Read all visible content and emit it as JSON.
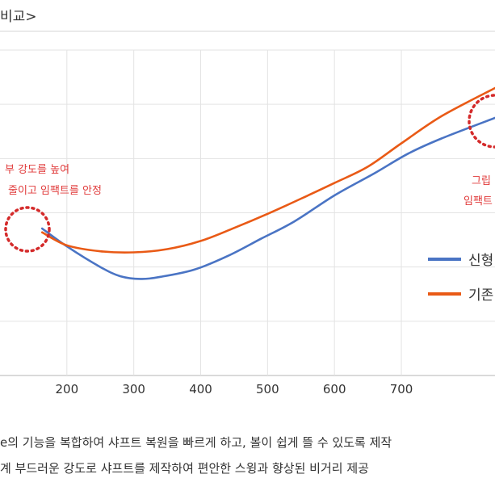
{
  "header": {
    "title": "비교>"
  },
  "chart_data": {
    "type": "line",
    "title": "비교>",
    "xlabel": "",
    "ylabel": "",
    "xlim": [
      100,
      840
    ],
    "ylim": [
      0,
      6
    ],
    "x_ticks": [
      "200",
      "300",
      "400",
      "500",
      "600",
      "700"
    ],
    "grid": true,
    "legend": "right",
    "series": [
      {
        "name": "신형",
        "color": "#4a74c4",
        "points": [
          [
            163,
            2.71
          ],
          [
            200,
            2.38
          ],
          [
            250,
            2.0
          ],
          [
            280,
            1.83
          ],
          [
            310,
            1.78
          ],
          [
            340,
            1.82
          ],
          [
            390,
            1.95
          ],
          [
            440,
            2.2
          ],
          [
            490,
            2.52
          ],
          [
            540,
            2.84
          ],
          [
            600,
            3.32
          ],
          [
            660,
            3.73
          ],
          [
            710,
            4.09
          ],
          [
            760,
            4.37
          ],
          [
            840,
            4.75
          ]
        ]
      },
      {
        "name": "기존",
        "color": "#e95a16",
        "points": [
          [
            163,
            2.64
          ],
          [
            200,
            2.4
          ],
          [
            250,
            2.29
          ],
          [
            300,
            2.27
          ],
          [
            350,
            2.33
          ],
          [
            400,
            2.48
          ],
          [
            450,
            2.72
          ],
          [
            500,
            2.98
          ],
          [
            550,
            3.26
          ],
          [
            600,
            3.55
          ],
          [
            650,
            3.85
          ],
          [
            700,
            4.28
          ],
          [
            760,
            4.78
          ],
          [
            840,
            5.3
          ]
        ]
      }
    ],
    "annotations": [
      "부 강도를 높여",
      "줄이고 임팩트를 안정",
      "그립",
      "임팩트"
    ]
  },
  "description": {
    "line1": "e의 기능을 복합하여 샤프트 복원을 빠르게 하고, 볼이 쉽게 뜰 수 있도록 제작",
    "line2": "계 부드러운 강도로 샤프트를 제작하여 편안한 스윙과 향상된 비거리 제공"
  }
}
